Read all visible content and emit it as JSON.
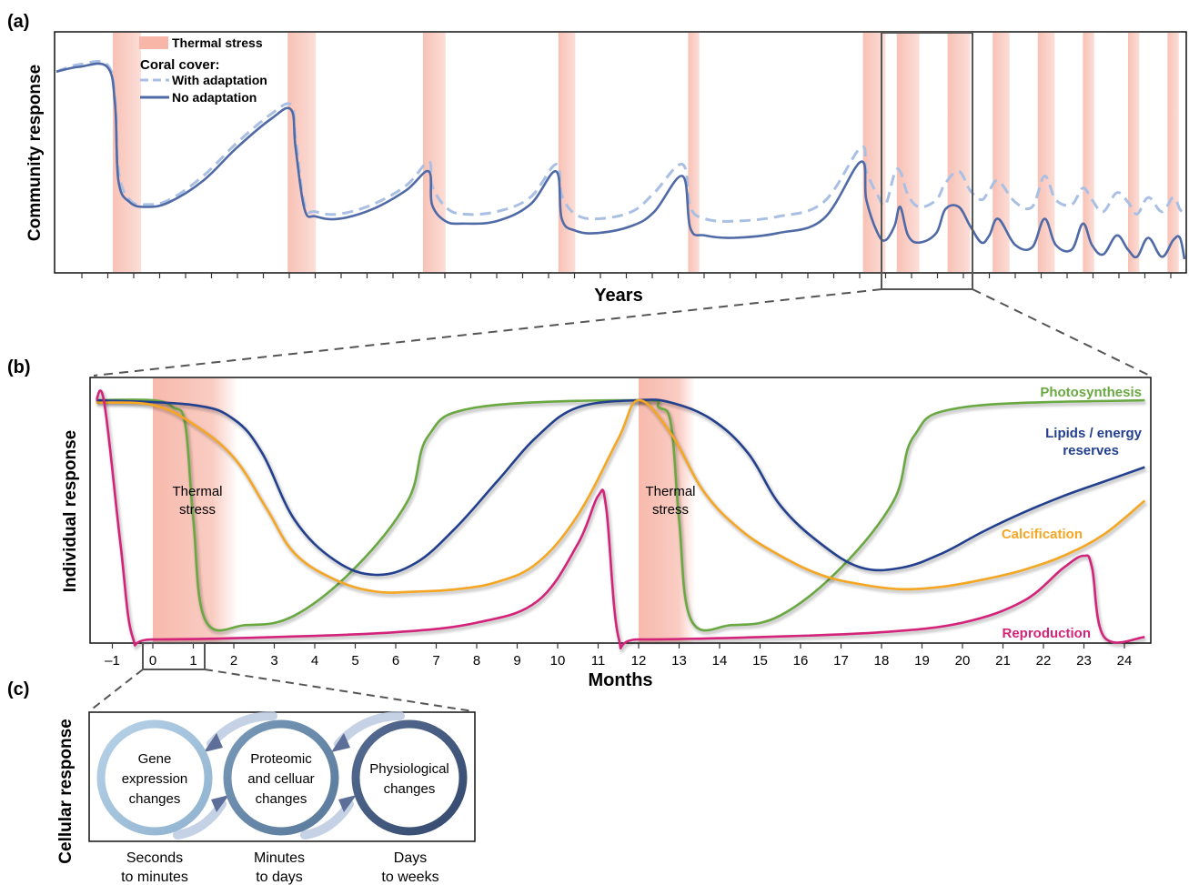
{
  "panels": {
    "a": {
      "label": "(a)",
      "ylabel": "Community response",
      "xlabel": "Years",
      "legend": {
        "thermal": "Thermal stress",
        "coral_title": "Coral cover:",
        "with": "With adaptation",
        "without": "No adaptation"
      }
    },
    "b": {
      "label": "(b)",
      "ylabel": "Individual response",
      "xlabel": "Months",
      "stress_line1": "Thermal",
      "stress_line2": "stress",
      "series_labels": {
        "photosynthesis": "Photosynthesis",
        "lipids1": "Lipids / energy",
        "lipids2": "reserves",
        "calcification": "Calcification",
        "reproduction": "Reproduction"
      }
    },
    "c": {
      "label": "(c)",
      "ylabel": "Cellular response",
      "circles": [
        {
          "l1": "Gene",
          "l2": "expression",
          "l3": "changes"
        },
        {
          "l1": "Proteomic",
          "l2": "and celluar",
          "l3": "changes"
        },
        {
          "l1": "Physiological",
          "l2": "changes",
          "l3": ""
        }
      ],
      "timescales": [
        {
          "l1": "Seconds",
          "l2": "to minutes"
        },
        {
          "l1": "Minutes",
          "l2": "to days"
        },
        {
          "l1": "Days",
          "l2": "to weeks"
        }
      ]
    }
  },
  "colors": {
    "stress": "#f7b6a8",
    "with_adaptation": "#a9bfe3",
    "no_adaptation": "#4f6aa6",
    "photosynthesis": "#6aa842",
    "lipids": "#23408f",
    "calcification": "#f5a623",
    "reproduction": "#d4237a",
    "circle_light": "#9fc0dc",
    "circle_mid": "#5f86a8",
    "circle_dark": "#3e5478"
  },
  "chart_data": [
    {
      "type": "line",
      "panel": "a",
      "xlabel": "Years",
      "ylabel": "Community response",
      "xlim": [
        0,
        100
      ],
      "ylim": [
        0,
        100
      ],
      "thermal_stress_periods": [
        [
          5,
          7.5
        ],
        [
          20.5,
          23
        ],
        [
          32.5,
          34.5
        ],
        [
          44.5,
          46
        ],
        [
          56,
          57
        ],
        [
          71.5,
          73.5
        ],
        [
          74.5,
          76.5
        ],
        [
          79,
          81
        ],
        [
          83,
          84.5
        ],
        [
          87,
          88.5
        ],
        [
          91,
          92
        ],
        [
          95,
          96
        ],
        [
          98.5,
          99.5
        ]
      ],
      "series": [
        {
          "name": "No adaptation",
          "x": [
            0,
            2,
            4.5,
            5.2,
            5.5,
            6.5,
            8,
            10,
            13,
            16,
            19,
            20.8,
            21.2,
            22,
            23,
            25,
            28,
            31,
            33,
            33.3,
            34.5,
            36,
            39,
            42,
            44.3,
            44.8,
            46,
            48,
            51,
            53,
            55.5,
            56.2,
            57.5,
            60,
            64,
            68,
            71.3,
            71.8,
            72.8,
            73.5,
            74.3,
            74.8,
            75.5,
            76.5,
            78,
            78.8,
            80,
            81,
            82,
            82.7,
            83.5,
            85,
            86.5,
            87.6,
            88.6,
            90,
            91,
            91.8,
            92.8,
            94,
            95,
            95.8,
            96.8,
            98,
            99,
            99.6,
            100
          ],
          "values": [
            84,
            86,
            86,
            70,
            38,
            29,
            27,
            29,
            38,
            52,
            64,
            68,
            52,
            26,
            23,
            22,
            26,
            34,
            42,
            28,
            21,
            20,
            21,
            28,
            42,
            22,
            17,
            16,
            19,
            25,
            40,
            18,
            15,
            14,
            16,
            22,
            46,
            30,
            16,
            13,
            19,
            27,
            15,
            12,
            16,
            26,
            27,
            19,
            12,
            15,
            22,
            11,
            10,
            22,
            11,
            9,
            20,
            11,
            7,
            15,
            9,
            6,
            14,
            6,
            13,
            14,
            5
          ]
        },
        {
          "name": "With adaptation",
          "x": [
            0,
            2,
            4.5,
            5.2,
            5.5,
            6.5,
            8,
            10,
            13,
            16,
            19,
            20.8,
            21.2,
            22,
            23,
            25,
            28,
            31,
            33,
            33.3,
            34.5,
            36,
            39,
            42,
            44.3,
            44.8,
            46,
            48,
            51,
            53,
            55.5,
            56.2,
            57.5,
            60,
            64,
            68,
            71.3,
            71.8,
            72.8,
            73.5,
            74.3,
            74.8,
            75.5,
            76.5,
            78,
            78.8,
            80,
            81,
            82,
            82.7,
            83.5,
            85,
            86.5,
            87.6,
            88.6,
            90,
            91,
            91.8,
            92.8,
            94,
            95,
            95.8,
            96.8,
            98,
            99,
            99.6,
            100
          ],
          "values": [
            84,
            87,
            87,
            72,
            42,
            30,
            28,
            30,
            40,
            54,
            66,
            70,
            56,
            28,
            25,
            24,
            28,
            36,
            46,
            36,
            27,
            24,
            25,
            31,
            45,
            32,
            24,
            22,
            25,
            33,
            45,
            27,
            22,
            21,
            23,
            29,
            52,
            42,
            32,
            28,
            41,
            42,
            32,
            27,
            30,
            37,
            42,
            34,
            30,
            34,
            38,
            29,
            27,
            40,
            30,
            28,
            35,
            30,
            25,
            33,
            29,
            24,
            31,
            25,
            31,
            26,
            24
          ]
        }
      ]
    },
    {
      "type": "line",
      "panel": "b",
      "xlabel": "Months",
      "ylabel": "Individual response",
      "xlim": [
        -1.5,
        24.5
      ],
      "ylim": [
        0,
        100
      ],
      "xticks": [
        -1,
        0,
        1,
        2,
        3,
        4,
        5,
        6,
        7,
        8,
        9,
        10,
        11,
        12,
        13,
        14,
        15,
        16,
        17,
        18,
        19,
        20,
        21,
        22,
        23,
        24
      ],
      "xtick_labels": [
        "–1",
        "0",
        "1",
        "2",
        "3",
        "4",
        "5",
        "6",
        "7",
        "8",
        "9",
        "10",
        "11",
        "12",
        "13",
        "14",
        "15",
        "16",
        "17",
        "18",
        "19",
        "20",
        "21",
        "22",
        "23",
        "24"
      ],
      "thermal_stress_periods": [
        [
          0,
          2.1
        ],
        [
          12,
          13.4
        ]
      ],
      "series": [
        {
          "name": "Photosynthesis",
          "x": [
            -1.4,
            0,
            0.5,
            0.8,
            1.0,
            1.3,
            2.3,
            3.5,
            5,
            6.3,
            6.8,
            8,
            12,
            12.5,
            12.8,
            13.0,
            13.3,
            14.3,
            15.5,
            17,
            18.3,
            18.8,
            20,
            24.5
          ],
          "values": [
            100,
            100,
            97,
            90,
            50,
            8,
            6,
            10,
            30,
            58,
            85,
            97,
            100,
            97,
            90,
            50,
            8,
            6,
            10,
            30,
            58,
            85,
            97,
            100
          ]
        },
        {
          "name": "Lipids / energy reserves",
          "x": [
            -1.4,
            1,
            2,
            2.7,
            3.5,
            4.5,
            5.5,
            6.5,
            7.5,
            8.5,
            9.5,
            10.5,
            12,
            12.8,
            13.8,
            14.7,
            15.5,
            16.5,
            17.5,
            18.5,
            19.5,
            20.5,
            21.5,
            22.5,
            23.5,
            24.5
          ],
          "values": [
            100,
            98,
            92,
            78,
            50,
            33,
            27,
            32,
            47,
            66,
            85,
            97,
            100,
            99,
            92,
            78,
            56,
            40,
            30,
            30,
            36,
            45,
            53,
            60,
            66,
            72
          ]
        },
        {
          "name": "Calcification",
          "x": [
            -1.4,
            0,
            1,
            2,
            2.8,
            3.5,
            4.5,
            5.5,
            6.5,
            7.5,
            8.5,
            9.5,
            10.5,
            11.5,
            12,
            12.8,
            13.6,
            14.5,
            15.5,
            16.5,
            17.5,
            18.5,
            19.5,
            20.5,
            21.5,
            22.5,
            23.5,
            24.5
          ],
          "values": [
            99,
            98,
            90,
            76,
            55,
            36,
            25,
            20,
            20,
            21,
            24,
            32,
            52,
            84,
            100,
            86,
            62,
            46,
            35,
            27,
            23,
            21,
            22,
            25,
            29,
            35,
            44,
            58
          ]
        },
        {
          "name": "Reproduction",
          "x": [
            -1.4,
            -1.2,
            -0.8,
            -0.5,
            0,
            3,
            6,
            8,
            9.5,
            10.5,
            11.0,
            11.2,
            11.5,
            12,
            15,
            18,
            20,
            21.5,
            22.5,
            23,
            23.2,
            23.5,
            24.5
          ],
          "values": [
            100,
            99,
            40,
            1,
            0,
            1,
            3,
            7,
            16,
            40,
            60,
            55,
            1,
            0,
            1,
            3,
            7,
            16,
            30,
            35,
            30,
            1,
            1
          ]
        }
      ]
    }
  ]
}
